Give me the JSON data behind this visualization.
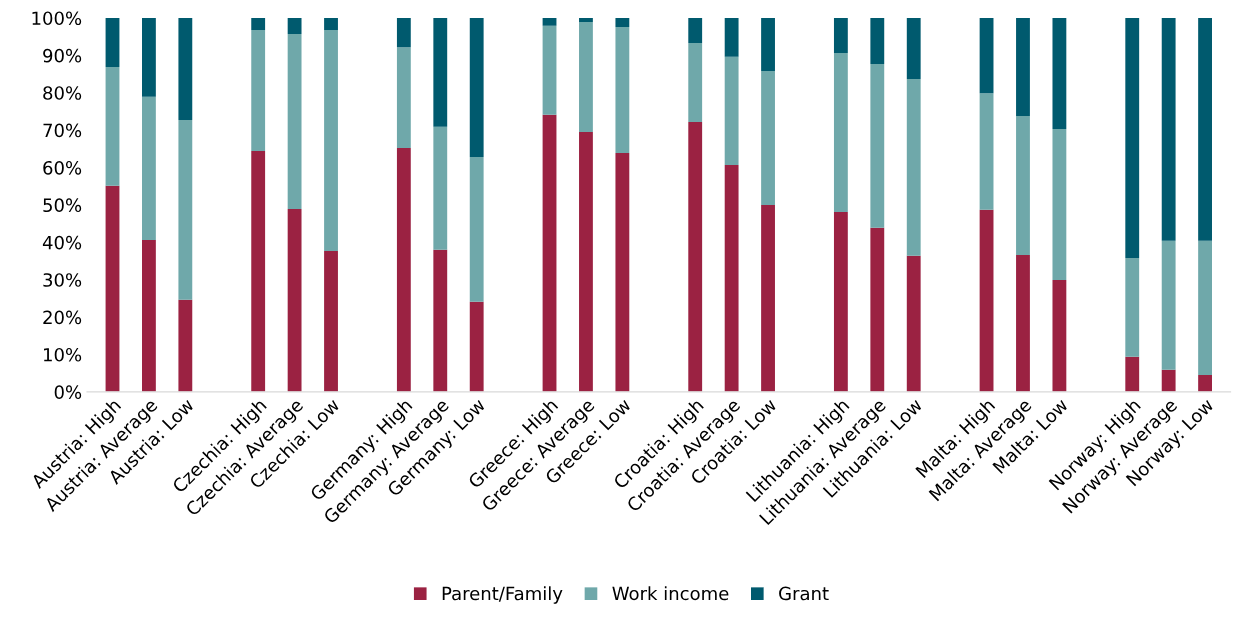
{
  "chart_data": {
    "type": "bar",
    "stacked": true,
    "categories": [
      "Austria: High",
      "Austria: Average",
      "Austria: Low",
      null,
      "Czechia: High",
      "Czechia: Average",
      "Czechia: Low",
      null,
      "Germany: High",
      "Germany: Average",
      "Germany: Low",
      null,
      "Greece: High",
      "Greece: Average",
      "Greece: Low",
      null,
      "Croatia: High",
      "Croatia: Average",
      "Croatia: Low",
      null,
      "Lithuania: High",
      "Lithuania: Average",
      "Lithuania: Low",
      null,
      "Malta: High",
      "Malta: Average",
      "Malta: Low",
      null,
      "Norway: High",
      "Norway: Average",
      "Norway: Low"
    ],
    "series": [
      {
        "name": "Parent/Family",
        "color": "#9b2242",
        "values": [
          55.1,
          40.6,
          24.6,
          null,
          64.4,
          48.9,
          37.7,
          null,
          65.2,
          38.0,
          24.1,
          null,
          74.1,
          69.5,
          63.9,
          null,
          72.2,
          60.7,
          50.0,
          null,
          48.1,
          43.9,
          36.4,
          null,
          48.7,
          36.6,
          29.9,
          null,
          9.4,
          5.9,
          4.5
        ]
      },
      {
        "name": "Work income",
        "color": "#6fa8aa",
        "values": [
          31.8,
          38.3,
          48.1,
          null,
          32.4,
          46.8,
          59.1,
          null,
          27.0,
          32.9,
          38.7,
          null,
          23.8,
          29.4,
          33.7,
          null,
          21.1,
          28.9,
          35.8,
          null,
          42.5,
          43.8,
          47.3,
          null,
          31.2,
          37.2,
          40.4,
          null,
          26.4,
          34.5,
          35.9
        ]
      },
      {
        "name": "Grant",
        "color": "#005a6e",
        "values": [
          13.1,
          21.1,
          27.3,
          null,
          3.2,
          4.3,
          3.2,
          null,
          7.8,
          29.1,
          37.2,
          null,
          2.1,
          1.1,
          2.4,
          null,
          6.7,
          10.4,
          14.2,
          null,
          9.4,
          12.3,
          16.3,
          null,
          20.1,
          26.2,
          29.7,
          null,
          64.2,
          59.6,
          59.6
        ]
      }
    ],
    "ylim": [
      0,
      100
    ],
    "yticks": [
      {
        "value": 0,
        "label": "0%"
      },
      {
        "value": 10,
        "label": "10%"
      },
      {
        "value": 20,
        "label": "20%"
      },
      {
        "value": 30,
        "label": "30%"
      },
      {
        "value": 40,
        "label": "40%"
      },
      {
        "value": 50,
        "label": "50%"
      },
      {
        "value": 60,
        "label": "60%"
      },
      {
        "value": 70,
        "label": "70%"
      },
      {
        "value": 80,
        "label": "80%"
      },
      {
        "value": 90,
        "label": "90%"
      },
      {
        "value": 100,
        "label": "100%"
      }
    ],
    "grid": false,
    "legend": "bottom"
  }
}
